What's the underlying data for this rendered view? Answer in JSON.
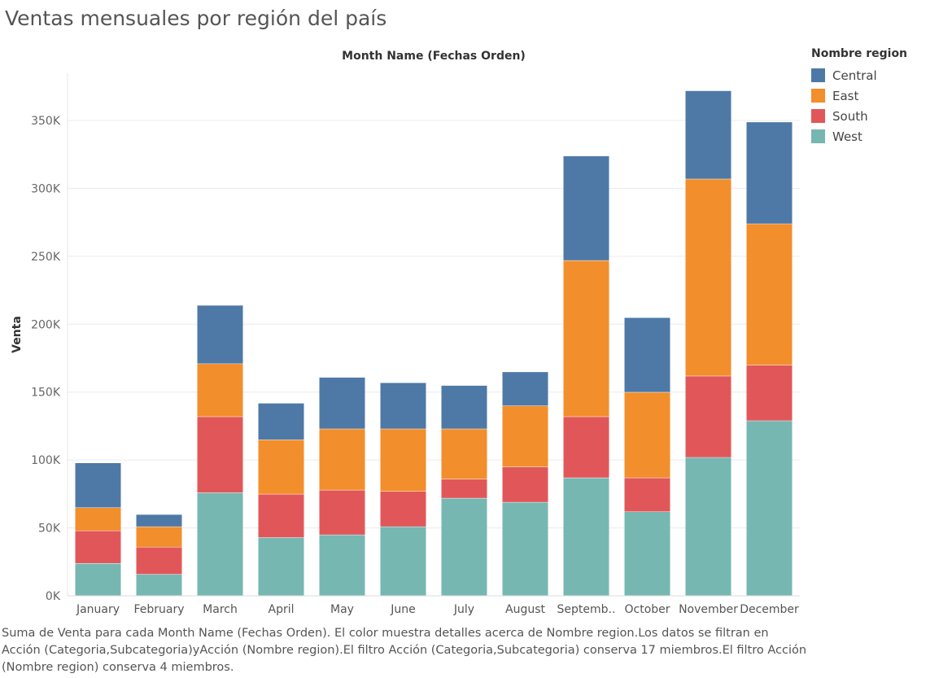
{
  "title": "Ventas mensuales por región del país",
  "footer": "Suma de Venta para cada Month Name (Fechas Orden). El color muestra detalles acerca de Nombre region.Los datos se filtran en Acción (Categoria,Subcategoria)yAcción (Nombre region).El filtro Acción (Categoria,Subcategoria) conserva 17 miembros.El filtro Acción (Nombre region) conserva 4 miembros.",
  "legend": {
    "title": "Nombre region",
    "items": [
      {
        "label": "Central",
        "color": "#4e79a7"
      },
      {
        "label": "East",
        "color": "#f28e2b"
      },
      {
        "label": "South",
        "color": "#e15759"
      },
      {
        "label": "West",
        "color": "#76b7b2"
      }
    ]
  },
  "chart_data": {
    "type": "bar",
    "stacked": true,
    "title": "",
    "xlabel": "Month Name (Fechas Orden)",
    "ylabel": "Venta",
    "ylim": [
      0,
      380000
    ],
    "yticks": [
      0,
      50000,
      100000,
      150000,
      200000,
      250000,
      300000,
      350000
    ],
    "ytick_labels": [
      "0K",
      "50K",
      "100K",
      "150K",
      "200K",
      "250K",
      "300K",
      "350K"
    ],
    "grid": true,
    "legend_position": "right",
    "categories": [
      "January",
      "February",
      "March",
      "April",
      "May",
      "June",
      "July",
      "August",
      "Septemb..",
      "October",
      "November",
      "December"
    ],
    "series": [
      {
        "name": "West",
        "color": "#76b7b2",
        "values": [
          24000,
          16000,
          76000,
          43000,
          45000,
          51000,
          72000,
          69000,
          87000,
          62000,
          102000,
          129000
        ]
      },
      {
        "name": "South",
        "color": "#e15759",
        "values": [
          24000,
          20000,
          56000,
          32000,
          33000,
          26000,
          14000,
          26000,
          45000,
          25000,
          60000,
          41000
        ]
      },
      {
        "name": "East",
        "color": "#f28e2b",
        "values": [
          17000,
          15000,
          39000,
          40000,
          45000,
          46000,
          37000,
          45000,
          115000,
          63000,
          145000,
          104000
        ]
      },
      {
        "name": "Central",
        "color": "#4e79a7",
        "values": [
          33000,
          9000,
          43000,
          27000,
          38000,
          34000,
          32000,
          25000,
          77000,
          55000,
          65000,
          75000
        ]
      }
    ]
  }
}
